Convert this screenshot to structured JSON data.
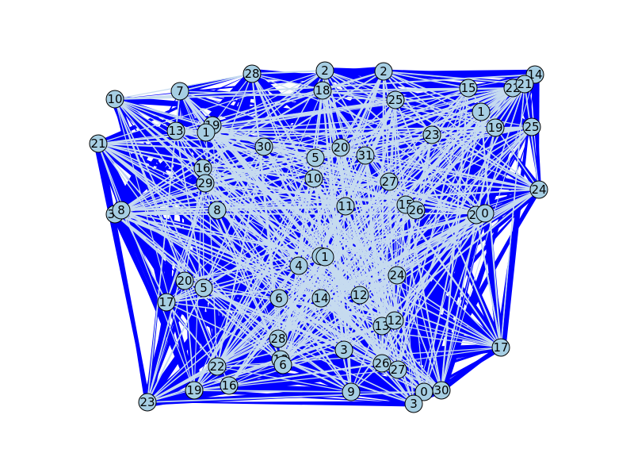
{
  "graph": {
    "colors": {
      "background": "#ffffff",
      "node_fill": "#a6cee3",
      "node_stroke": "#000000",
      "edge_thick": "#0000ff",
      "edge_thin": "#c6dbef"
    },
    "nodes": [
      {
        "id": "n0",
        "label": "28"
      },
      {
        "id": "n1",
        "label": "2"
      },
      {
        "id": "n2",
        "label": "2"
      },
      {
        "id": "n3",
        "label": "14"
      },
      {
        "id": "n4",
        "label": "10"
      },
      {
        "id": "n5",
        "label": "7"
      },
      {
        "id": "n6",
        "label": "18"
      },
      {
        "id": "n7",
        "label": "15"
      },
      {
        "id": "n8",
        "label": "22"
      },
      {
        "id": "n9",
        "label": "21"
      },
      {
        "id": "n10",
        "label": "25"
      },
      {
        "id": "n11",
        "label": "1"
      },
      {
        "id": "n12",
        "label": "13"
      },
      {
        "id": "n13",
        "label": "19"
      },
      {
        "id": "n14",
        "label": "1"
      },
      {
        "id": "n15",
        "label": "19"
      },
      {
        "id": "n16",
        "label": "25"
      },
      {
        "id": "n17",
        "label": "21"
      },
      {
        "id": "n18",
        "label": "30"
      },
      {
        "id": "n19",
        "label": "20"
      },
      {
        "id": "n20",
        "label": "23"
      },
      {
        "id": "n21",
        "label": "5"
      },
      {
        "id": "n22",
        "label": "31"
      },
      {
        "id": "n23",
        "label": "16"
      },
      {
        "id": "n24",
        "label": "10"
      },
      {
        "id": "n25",
        "label": "29"
      },
      {
        "id": "n26",
        "label": "27"
      },
      {
        "id": "n27",
        "label": "24"
      },
      {
        "id": "n28",
        "label": "31"
      },
      {
        "id": "n29",
        "label": "8"
      },
      {
        "id": "n30",
        "label": "8"
      },
      {
        "id": "n31",
        "label": "11"
      },
      {
        "id": "n32",
        "label": "15"
      },
      {
        "id": "n33",
        "label": "26"
      },
      {
        "id": "n34",
        "label": "29"
      },
      {
        "id": "n35",
        "label": "0"
      },
      {
        "id": "n36",
        "label": "4"
      },
      {
        "id": "n37",
        "label": "7"
      },
      {
        "id": "n38",
        "label": "1"
      },
      {
        "id": "n39",
        "label": "24"
      },
      {
        "id": "n40",
        "label": "20"
      },
      {
        "id": "n41",
        "label": "5"
      },
      {
        "id": "n42",
        "label": "17"
      },
      {
        "id": "n43",
        "label": "6"
      },
      {
        "id": "n44",
        "label": "14"
      },
      {
        "id": "n45",
        "label": "12"
      },
      {
        "id": "n46",
        "label": "13"
      },
      {
        "id": "n47",
        "label": "12"
      },
      {
        "id": "n48",
        "label": "28"
      },
      {
        "id": "n49",
        "label": "3"
      },
      {
        "id": "n50",
        "label": "17"
      },
      {
        "id": "n51",
        "label": "18"
      },
      {
        "id": "n52",
        "label": "6"
      },
      {
        "id": "n53",
        "label": "22"
      },
      {
        "id": "n54",
        "label": "26"
      },
      {
        "id": "n55",
        "label": "27"
      },
      {
        "id": "n56",
        "label": "23"
      },
      {
        "id": "n57",
        "label": "19"
      },
      {
        "id": "n58",
        "label": "16"
      },
      {
        "id": "n59",
        "label": "9"
      },
      {
        "id": "n60",
        "label": "0"
      },
      {
        "id": "n61",
        "label": "30"
      },
      {
        "id": "n62",
        "label": "3"
      }
    ]
  }
}
